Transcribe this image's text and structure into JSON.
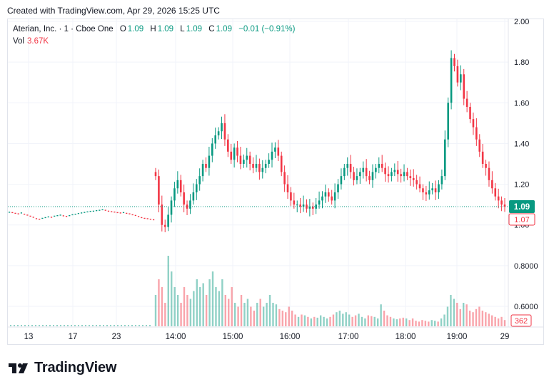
{
  "header": {
    "created_text": "Created with TradingView.com, Apr 29, 2026 15:25 UTC"
  },
  "legend": {
    "symbol": "Aterian, Inc. · 1 · Cboe One",
    "open_label": "O",
    "open": "1.09",
    "high_label": "H",
    "high": "1.09",
    "low_label": "L",
    "low": "1.09",
    "close_label": "C",
    "close": "1.09",
    "change": "−0.01 (−0.91%)",
    "vol_label": "Vol",
    "vol_value": "3.67K"
  },
  "brand": {
    "name": "TradingView"
  },
  "colors": {
    "up": "#089981",
    "down": "#f23645",
    "grid": "#f0f3fa",
    "text": "#131722"
  },
  "chart_data": {
    "type": "candlestick",
    "y_axis_labels": [
      "2.00",
      "1.80",
      "1.60",
      "1.40",
      "1.20",
      "1.00",
      "0.8000",
      "0.6000"
    ],
    "ylim": [
      0.5,
      2.0
    ],
    "x_tick_labels": [
      "13",
      "17",
      "23",
      "14:00",
      "15:00",
      "16:00",
      "17:00",
      "18:00",
      "19:00",
      "29"
    ],
    "last_price": "1.09",
    "bid_label": "1.07",
    "volume_last": "362",
    "daily_history_close": [
      1.094,
      1.092,
      1.088,
      1.085,
      1.09,
      1.083,
      1.078,
      1.072,
      1.066,
      1.058,
      1.055,
      1.06,
      1.064,
      1.068,
      1.066,
      1.072,
      1.075,
      1.078,
      1.074,
      1.071,
      1.075,
      1.08,
      1.083,
      1.087,
      1.09,
      1.093,
      1.096,
      1.099,
      1.1,
      1.103,
      1.105,
      1.108,
      1.105,
      1.1,
      1.097,
      1.095,
      1.092,
      1.09,
      1.092,
      1.088,
      1.085,
      1.08,
      1.076,
      1.07,
      1.064,
      1.06,
      1.058,
      1.055,
      1.052
    ],
    "intraday_close": [
      1.24,
      1.1,
      1.0,
      0.99,
      1.05,
      1.12,
      1.18,
      1.22,
      1.16,
      1.1,
      1.08,
      1.12,
      1.16,
      1.2,
      1.24,
      1.3,
      1.28,
      1.34,
      1.4,
      1.44,
      1.46,
      1.5,
      1.42,
      1.36,
      1.32,
      1.38,
      1.34,
      1.3,
      1.32,
      1.34,
      1.3,
      1.28,
      1.3,
      1.26,
      1.28,
      1.3,
      1.32,
      1.36,
      1.38,
      1.34,
      1.26,
      1.2,
      1.16,
      1.12,
      1.1,
      1.1,
      1.09,
      1.1,
      1.08,
      1.09,
      1.08,
      1.1,
      1.12,
      1.14,
      1.16,
      1.14,
      1.12,
      1.16,
      1.2,
      1.24,
      1.28,
      1.3,
      1.26,
      1.22,
      1.24,
      1.26,
      1.28,
      1.24,
      1.22,
      1.26,
      1.28,
      1.3,
      1.28,
      1.25,
      1.24,
      1.26,
      1.27,
      1.25,
      1.24,
      1.26,
      1.24,
      1.23,
      1.22,
      1.2,
      1.18,
      1.16,
      1.15,
      1.17,
      1.18,
      1.16,
      1.2,
      1.24,
      1.42,
      1.6,
      1.82,
      1.78,
      1.7,
      1.74,
      1.62,
      1.58,
      1.52,
      1.48,
      1.42,
      1.36,
      1.3,
      1.28,
      1.22,
      1.18,
      1.14,
      1.12,
      1.1,
      1.09
    ],
    "intraday_volume": [
      0.4,
      0.6,
      0.5,
      0.3,
      0.9,
      0.7,
      0.5,
      0.4,
      0.3,
      0.5,
      0.4,
      0.35,
      0.45,
      0.6,
      0.5,
      0.55,
      0.4,
      0.6,
      0.7,
      0.5,
      0.45,
      0.6,
      0.4,
      0.35,
      0.5,
      0.3,
      0.25,
      0.4,
      0.3,
      0.35,
      0.25,
      0.2,
      0.3,
      0.35,
      0.25,
      0.3,
      0.4,
      0.3,
      0.28,
      0.22,
      0.2,
      0.18,
      0.25,
      0.2,
      0.15,
      0.12,
      0.15,
      0.14,
      0.12,
      0.1,
      0.12,
      0.11,
      0.14,
      0.12,
      0.1,
      0.12,
      0.15,
      0.18,
      0.2,
      0.16,
      0.18,
      0.15,
      0.12,
      0.14,
      0.16,
      0.12,
      0.1,
      0.14,
      0.13,
      0.12,
      0.1,
      0.28,
      0.2,
      0.14,
      0.12,
      0.1,
      0.09,
      0.1,
      0.11,
      0.1,
      0.08,
      0.1,
      0.07,
      0.06,
      0.08,
      0.07,
      0.06,
      0.08,
      0.07,
      0.06,
      0.1,
      0.15,
      0.25,
      0.4,
      0.35,
      0.3,
      0.22,
      0.3,
      0.28,
      0.2,
      0.18,
      0.22,
      0.25,
      0.2,
      0.18,
      0.16,
      0.14,
      0.12,
      0.1,
      0.12,
      0.08
    ]
  }
}
